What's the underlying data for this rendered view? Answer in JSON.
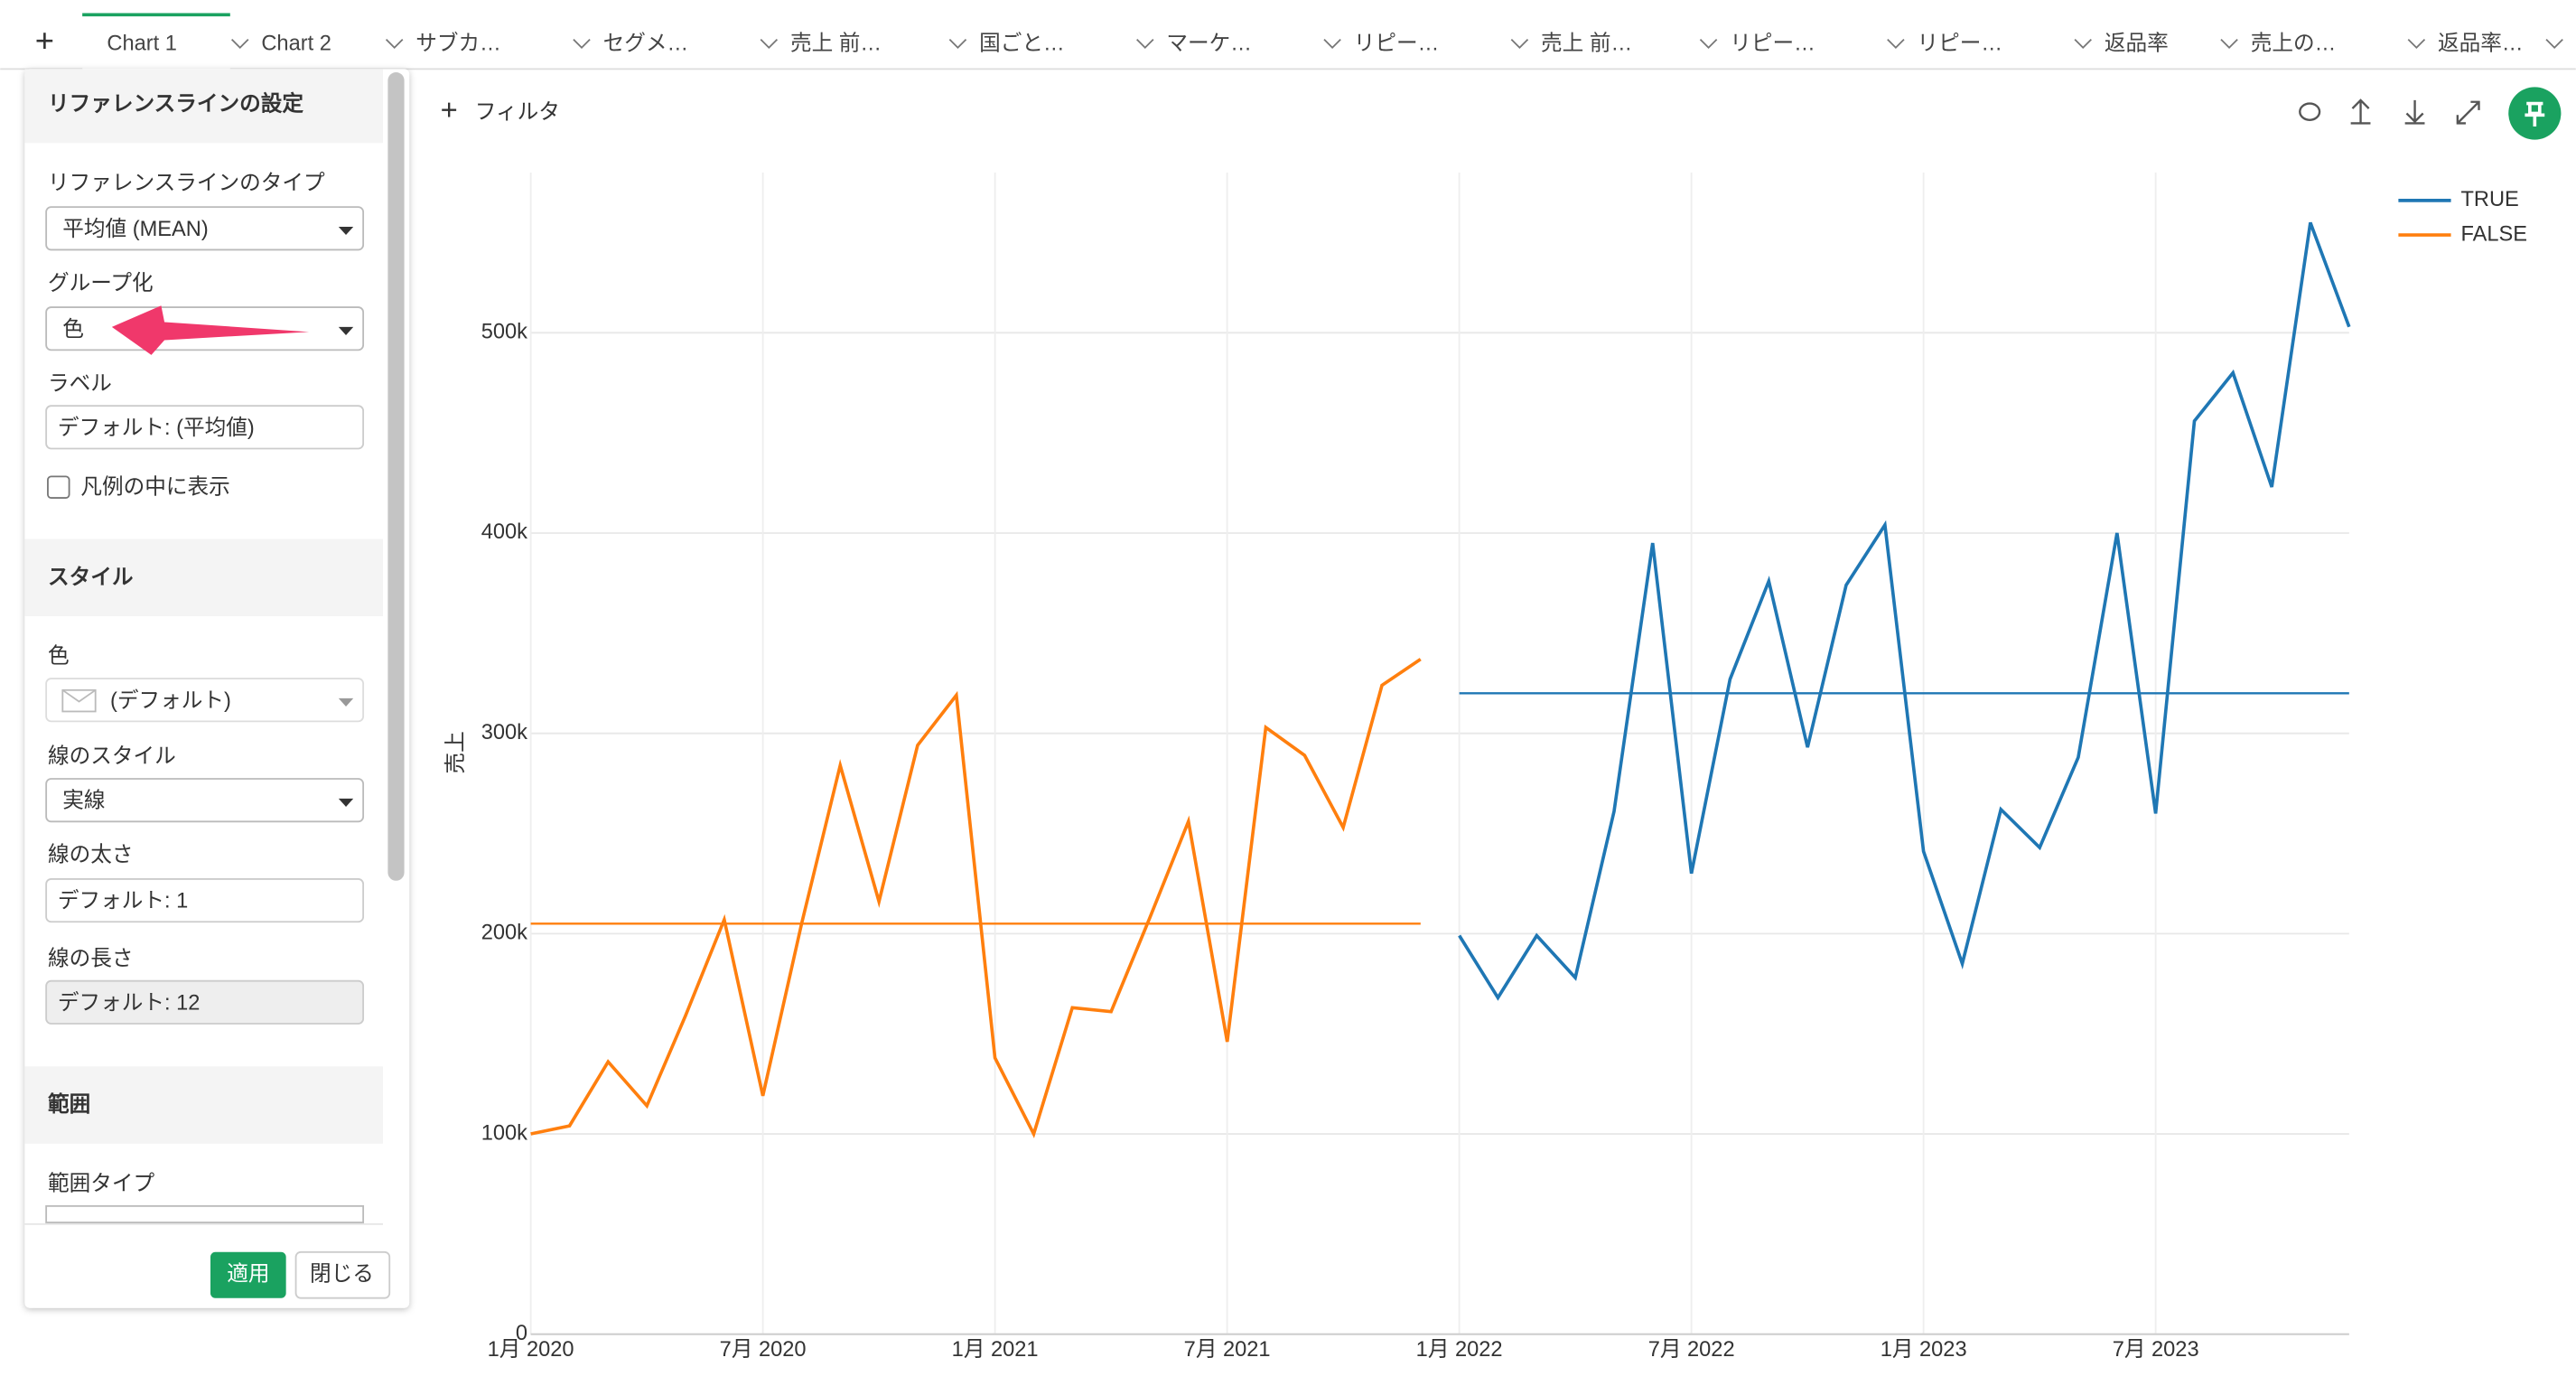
{
  "tabs": [
    "Chart 1",
    "Chart 2",
    "サブカ…",
    "セグメ…",
    "売上 前…",
    "国ごと…",
    "マーケ…",
    "リピー…",
    "売上 前…",
    "リピー…",
    "リピー…",
    "返品率",
    "売上の…",
    "返品率…"
  ],
  "toolbar": {
    "filter": "フィルタ"
  },
  "panel": {
    "title": "リファレンスラインの設定",
    "type_label": "リファレンスラインのタイプ",
    "type_value": "平均値 (MEAN)",
    "group_label": "グループ化",
    "group_value": "色",
    "label_label": "ラベル",
    "label_placeholder": "デフォルト: (平均値)",
    "legend_checkbox": "凡例の中に表示",
    "style_header": "スタイル",
    "color_label": "色",
    "color_value": "(デフォルト)",
    "line_style_label": "線のスタイル",
    "line_style_value": "実線",
    "width_label": "線の太さ",
    "width_placeholder": "デフォルト: 1",
    "length_label": "線の長さ",
    "length_placeholder": "デフォルト: 12",
    "range_header": "範囲",
    "range_type_label": "範囲タイプ",
    "apply": "適用",
    "close": "閉じる"
  },
  "chart_data": {
    "type": "line",
    "y_label": "売上",
    "x": [
      "2020-01",
      "2020-02",
      "2020-03",
      "2020-04",
      "2020-05",
      "2020-06",
      "2020-07",
      "2020-08",
      "2020-09",
      "2020-10",
      "2020-11",
      "2020-12",
      "2021-01",
      "2021-02",
      "2021-03",
      "2021-04",
      "2021-05",
      "2021-06",
      "2021-07",
      "2021-08",
      "2021-09",
      "2021-10",
      "2021-11",
      "2021-12",
      "2022-01",
      "2022-02",
      "2022-03",
      "2022-04",
      "2022-05",
      "2022-06",
      "2022-07",
      "2022-08",
      "2022-09",
      "2022-10",
      "2022-11",
      "2022-12",
      "2023-01",
      "2023-02",
      "2023-03",
      "2023-04",
      "2023-05",
      "2023-06",
      "2023-07",
      "2023-08",
      "2023-09",
      "2023-10",
      "2023-11",
      "2023-12"
    ],
    "xlim": [
      "2020-01",
      "2023-12"
    ],
    "xticks": [
      {
        "value": "2020-01",
        "label": "1月 2020"
      },
      {
        "value": "2020-07",
        "label": "7月 2020"
      },
      {
        "value": "2021-01",
        "label": "1月 2021"
      },
      {
        "value": "2021-07",
        "label": "7月 2021"
      },
      {
        "value": "2022-01",
        "label": "1月 2022"
      },
      {
        "value": "2022-07",
        "label": "7月 2022"
      },
      {
        "value": "2023-01",
        "label": "1月 2023"
      },
      {
        "value": "2023-07",
        "label": "7月 2023"
      }
    ],
    "ylim": [
      0,
      580000
    ],
    "yticks": [
      0,
      {
        "value": 100000,
        "label": "100k"
      },
      {
        "value": 200000,
        "label": "200k"
      },
      {
        "value": 300000,
        "label": "300k"
      },
      {
        "value": 400000,
        "label": "400k"
      },
      {
        "value": 500000,
        "label": "500k"
      }
    ],
    "grid": true,
    "legend": "top-right",
    "series": [
      {
        "name": "TRUE",
        "color": "#1f77b4",
        "mean": 320000,
        "values": [
          null,
          null,
          null,
          null,
          null,
          null,
          null,
          null,
          null,
          null,
          null,
          null,
          null,
          null,
          null,
          null,
          null,
          null,
          null,
          null,
          null,
          null,
          null,
          null,
          199000,
          168000,
          199000,
          178000,
          261000,
          395000,
          230000,
          327000,
          376000,
          293000,
          374000,
          404000,
          241000,
          185000,
          262000,
          243000,
          288000,
          400000,
          260000,
          456000,
          480000,
          423000,
          555000,
          503000
        ]
      },
      {
        "name": "FALSE",
        "color": "#ff7f0e",
        "mean": 205000,
        "values": [
          100000,
          104000,
          136000,
          114000,
          159000,
          207000,
          119000,
          205000,
          284000,
          216000,
          294000,
          319000,
          138000,
          100000,
          163000,
          161000,
          208000,
          256000,
          146000,
          303000,
          289000,
          253000,
          324000,
          337000,
          null,
          null,
          null,
          null,
          null,
          null,
          null,
          null,
          null,
          null,
          null,
          null,
          null,
          null,
          null,
          null,
          null,
          null,
          null,
          null,
          null,
          null,
          null,
          null
        ]
      }
    ]
  }
}
